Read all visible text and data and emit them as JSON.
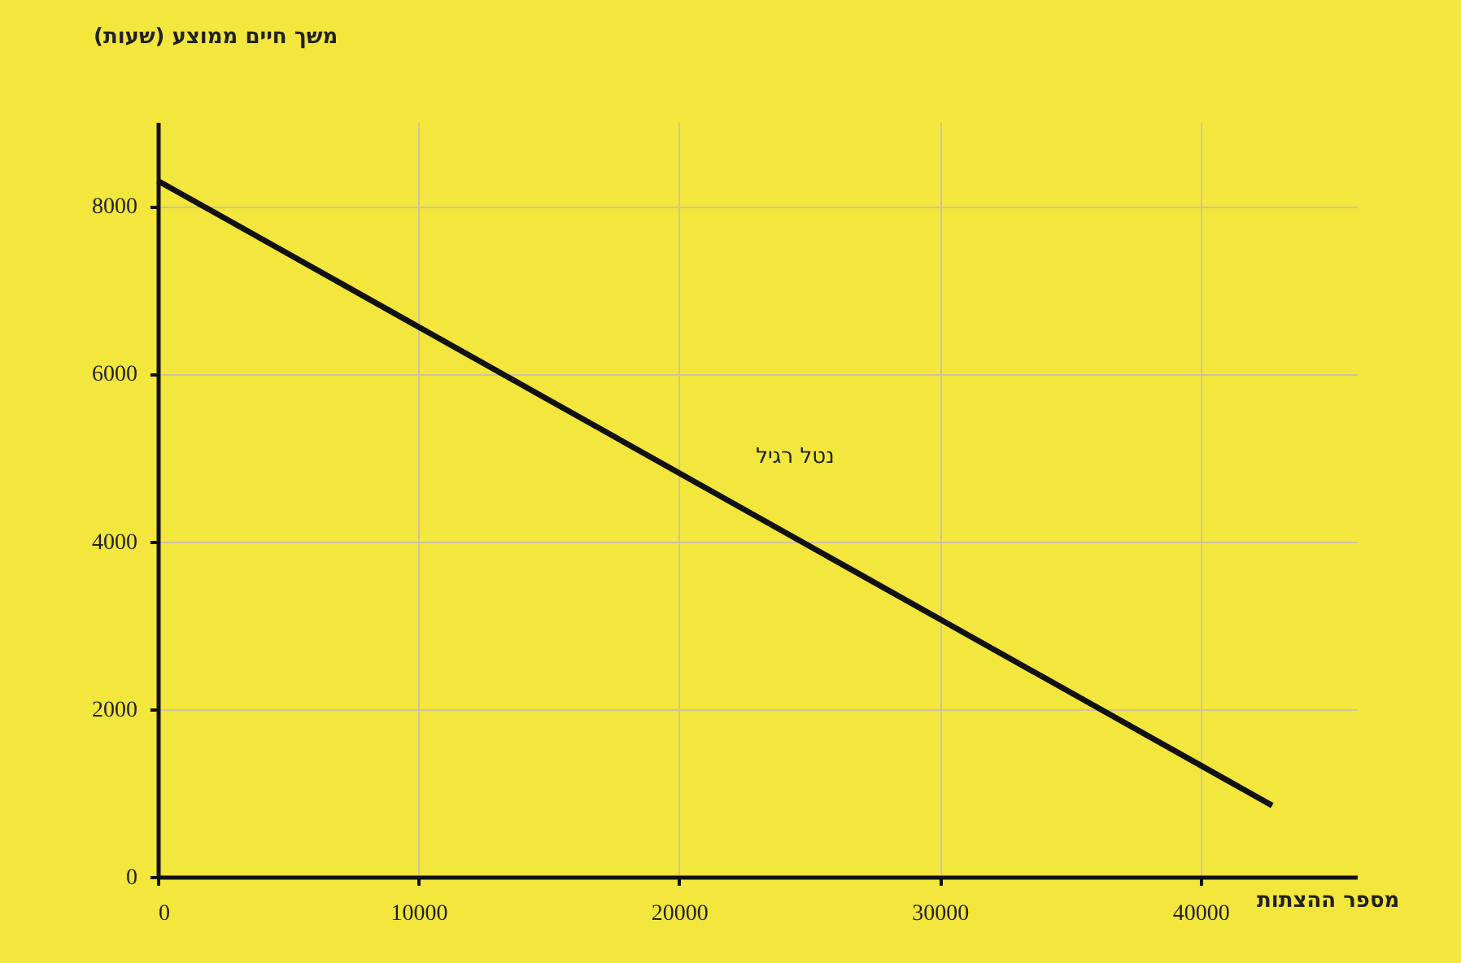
{
  "chart_data": {
    "type": "line",
    "xlabel": "מספר ההצתות",
    "ylabel": "משך חיים ממוצע (שעות)",
    "series": [
      {
        "name": "נטל רגיל",
        "color": "#111111",
        "x": [
          0,
          42750
        ],
        "values": [
          8300,
          850
        ]
      }
    ],
    "xlim": [
      0,
      46000
    ],
    "xticks": [
      0,
      10000,
      20000,
      30000,
      40000
    ],
    "ylim": [
      0,
      9000
    ],
    "yticks": [
      0,
      2000,
      4000,
      6000,
      8000
    ],
    "grid": true,
    "marker": "none",
    "line_style": "solid"
  }
}
